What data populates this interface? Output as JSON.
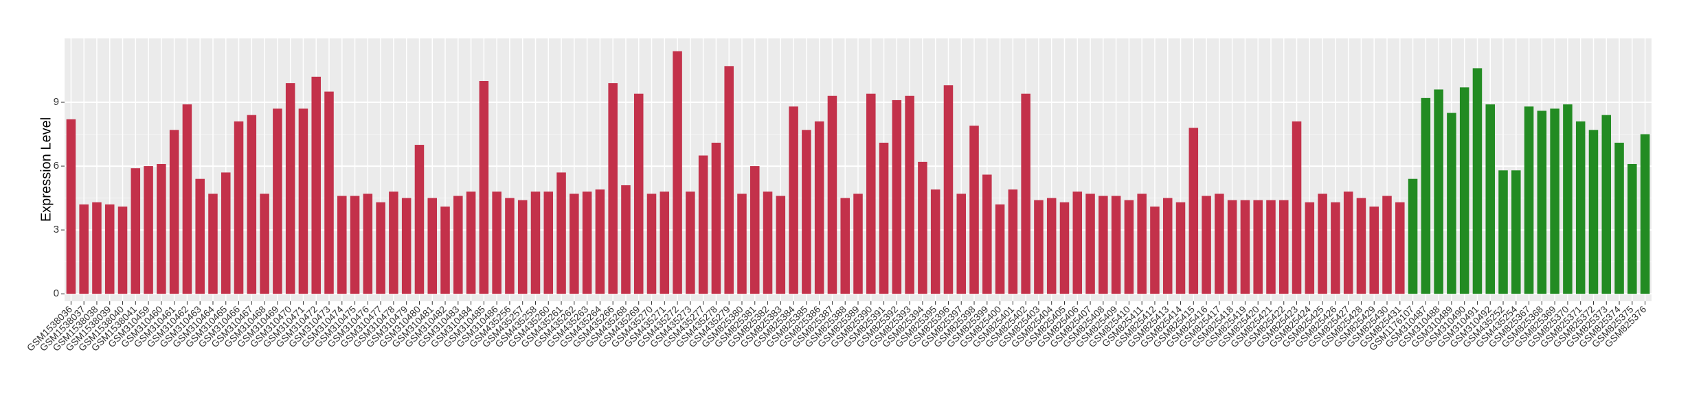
{
  "chart_data": {
    "type": "bar",
    "y_label": "Expression Level",
    "categories": [
      "GSM1538036",
      "GSM1538037",
      "GSM1538038",
      "GSM1538039",
      "GSM1538040",
      "GSM1538041",
      "GSM310459",
      "GSM310460",
      "GSM310461",
      "GSM310462",
      "GSM310463",
      "GSM310464",
      "GSM310465",
      "GSM310466",
      "GSM310467",
      "GSM310468",
      "GSM310469",
      "GSM310470",
      "GSM310471",
      "GSM310472",
      "GSM310473",
      "GSM310474",
      "GSM310475",
      "GSM310476",
      "GSM310477",
      "GSM310478",
      "GSM310479",
      "GSM310480",
      "GSM310481",
      "GSM310482",
      "GSM310483",
      "GSM310484",
      "GSM310485",
      "GSM310486",
      "GSM435256",
      "GSM435257",
      "GSM435258",
      "GSM435260",
      "GSM435261",
      "GSM435262",
      "GSM435263",
      "GSM435264",
      "GSM435266",
      "GSM435268",
      "GSM435269",
      "GSM435270",
      "GSM435271",
      "GSM435272",
      "GSM435273",
      "GSM435277",
      "GSM435278",
      "GSM435279",
      "GSM825380",
      "GSM825381",
      "GSM825382",
      "GSM825383",
      "GSM825384",
      "GSM825385",
      "GSM825386",
      "GSM825387",
      "GSM825388",
      "GSM825389",
      "GSM825390",
      "GSM825391",
      "GSM825392",
      "GSM825393",
      "GSM825394",
      "GSM825395",
      "GSM825396",
      "GSM825397",
      "GSM825398",
      "GSM825399",
      "GSM825400",
      "GSM825401",
      "GSM825402",
      "GSM825403",
      "GSM825404",
      "GSM825405",
      "GSM825406",
      "GSM825407",
      "GSM825408",
      "GSM825409",
      "GSM825410",
      "GSM825411",
      "GSM825412",
      "GSM825413",
      "GSM825414",
      "GSM825415",
      "GSM825416",
      "GSM825417",
      "GSM825418",
      "GSM825419",
      "GSM825420",
      "GSM825421",
      "GSM825422",
      "GSM825423",
      "GSM825424",
      "GSM825425",
      "GSM825426",
      "GSM825427",
      "GSM825428",
      "GSM825429",
      "GSM825430",
      "GSM825431",
      "GSM1176107",
      "GSM310487",
      "GSM310488",
      "GSM310489",
      "GSM310490",
      "GSM310491",
      "GSM310492",
      "GSM435252",
      "GSM435254",
      "GSM825367",
      "GSM825368",
      "GSM825369",
      "GSM825370",
      "GSM825371",
      "GSM825372",
      "GSM825373",
      "GSM825374",
      "GSM825375",
      "GSM825376"
    ],
    "values": [
      8.2,
      4.2,
      4.3,
      4.2,
      4.1,
      5.9,
      6.0,
      6.1,
      7.7,
      8.9,
      5.4,
      4.7,
      5.7,
      8.1,
      8.4,
      4.7,
      8.7,
      9.9,
      8.7,
      10.2,
      9.5,
      4.6,
      4.6,
      4.7,
      4.3,
      4.8,
      4.5,
      7.0,
      4.5,
      4.1,
      4.6,
      4.8,
      10.0,
      4.8,
      4.5,
      4.4,
      4.8,
      4.8,
      5.7,
      4.7,
      4.8,
      4.9,
      9.9,
      5.1,
      9.4,
      4.7,
      4.8,
      11.4,
      4.8,
      6.5,
      7.1,
      10.7,
      4.7,
      6.0,
      4.8,
      4.6,
      8.8,
      7.7,
      8.1,
      9.3,
      4.5,
      4.7,
      9.4,
      7.1,
      9.1,
      9.3,
      6.2,
      4.9,
      9.8,
      4.7,
      7.9,
      5.6,
      4.2,
      4.9,
      9.4,
      4.4,
      4.5,
      4.3,
      4.8,
      4.7,
      4.6,
      4.6,
      4.4,
      4.7,
      4.1,
      4.5,
      4.3,
      7.8,
      4.6,
      4.7,
      4.4,
      4.4,
      4.4,
      4.4,
      4.4,
      8.1,
      4.3,
      4.7,
      4.3,
      4.8,
      4.5,
      4.1,
      4.6,
      4.3,
      5.4,
      9.2,
      9.6,
      8.5,
      9.7,
      10.6,
      8.9,
      5.8,
      5.8,
      8.8,
      8.6,
      8.7,
      8.9,
      8.1,
      7.7,
      8.4,
      7.1,
      6.1,
      7.5
    ],
    "colors": [
      "#c3314a",
      "#c3314a",
      "#c3314a",
      "#c3314a",
      "#c3314a",
      "#c3314a",
      "#c3314a",
      "#c3314a",
      "#c3314a",
      "#c3314a",
      "#c3314a",
      "#c3314a",
      "#c3314a",
      "#c3314a",
      "#c3314a",
      "#c3314a",
      "#c3314a",
      "#c3314a",
      "#c3314a",
      "#c3314a",
      "#c3314a",
      "#c3314a",
      "#c3314a",
      "#c3314a",
      "#c3314a",
      "#c3314a",
      "#c3314a",
      "#c3314a",
      "#c3314a",
      "#c3314a",
      "#c3314a",
      "#c3314a",
      "#c3314a",
      "#c3314a",
      "#c3314a",
      "#c3314a",
      "#c3314a",
      "#c3314a",
      "#c3314a",
      "#c3314a",
      "#c3314a",
      "#c3314a",
      "#c3314a",
      "#c3314a",
      "#c3314a",
      "#c3314a",
      "#c3314a",
      "#c3314a",
      "#c3314a",
      "#c3314a",
      "#c3314a",
      "#c3314a",
      "#c3314a",
      "#c3314a",
      "#c3314a",
      "#c3314a",
      "#c3314a",
      "#c3314a",
      "#c3314a",
      "#c3314a",
      "#c3314a",
      "#c3314a",
      "#c3314a",
      "#c3314a",
      "#c3314a",
      "#c3314a",
      "#c3314a",
      "#c3314a",
      "#c3314a",
      "#c3314a",
      "#c3314a",
      "#c3314a",
      "#c3314a",
      "#c3314a",
      "#c3314a",
      "#c3314a",
      "#c3314a",
      "#c3314a",
      "#c3314a",
      "#c3314a",
      "#c3314a",
      "#c3314a",
      "#c3314a",
      "#c3314a",
      "#c3314a",
      "#c3314a",
      "#c3314a",
      "#c3314a",
      "#c3314a",
      "#c3314a",
      "#c3314a",
      "#c3314a",
      "#c3314a",
      "#c3314a",
      "#c3314a",
      "#c3314a",
      "#c3314a",
      "#c3314a",
      "#c3314a",
      "#c3314a",
      "#c3314a",
      "#c3314a",
      "#c3314a",
      "#c3314a",
      "#228b22",
      "#228b22",
      "#228b22",
      "#228b22",
      "#228b22",
      "#228b22",
      "#228b22",
      "#228b22",
      "#228b22",
      "#228b22",
      "#228b22",
      "#228b22",
      "#228b22",
      "#228b22",
      "#228b22",
      "#228b22",
      "#228b22",
      "#228b22",
      "#228b22"
    ],
    "ylim": [
      -0.35,
      12.0
    ],
    "yticks": [
      0,
      3,
      6,
      9
    ],
    "grid": true
  }
}
